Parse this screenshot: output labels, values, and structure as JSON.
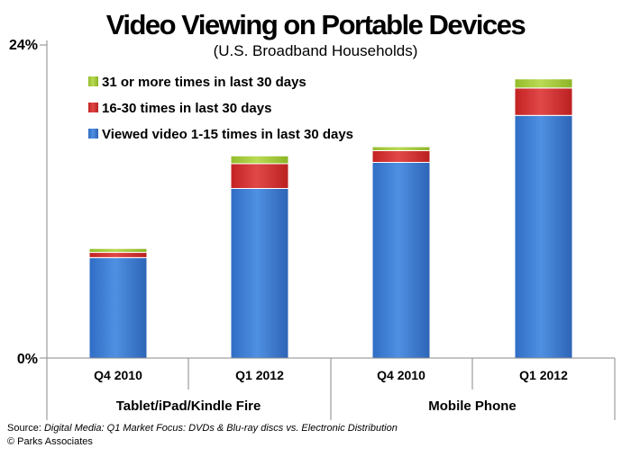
{
  "chart_data": {
    "type": "bar",
    "stacked": true,
    "title": "Video Viewing on Portable Devices",
    "subtitle": "(U.S. Broadband Households)",
    "categories": [
      "Q4 2010",
      "Q1 2012",
      "Q4 2010",
      "Q1 2012"
    ],
    "groups": [
      {
        "label": "Tablet/iPad/Kindle Fire",
        "categories": [
          "Q4 2010",
          "Q1 2012"
        ]
      },
      {
        "label": "Mobile Phone",
        "categories": [
          "Q4 2010",
          "Q1 2012"
        ]
      }
    ],
    "series": [
      {
        "name": "Viewed video 1-15 times in last 30 days",
        "values": [
          7.7,
          13.0,
          15.0,
          18.6
        ],
        "color": "#3f7fd5"
      },
      {
        "name": "16-30 times in last 30 days",
        "values": [
          0.4,
          1.9,
          0.9,
          2.1
        ],
        "color": "#d63030"
      },
      {
        "name": "31 or more times in last 30 days",
        "values": [
          0.3,
          0.6,
          0.3,
          0.7
        ],
        "color": "#a8cc3a"
      }
    ],
    "legend_order": [
      "31 or more times in last 30 days",
      "16-30 times in last 30 days",
      "Viewed video 1-15 times in last 30 days"
    ],
    "ylim": [
      0,
      24
    ],
    "ytick_labels": [
      "0%",
      "24%"
    ],
    "legend_position": "top-left",
    "grid": false
  },
  "source": {
    "prefix": "Source: ",
    "title": "Digital Media: Q1 Market Focus: DVDs & Blu-ray discs vs. Electronic Distribution",
    "copyright": "© Parks Associates"
  }
}
